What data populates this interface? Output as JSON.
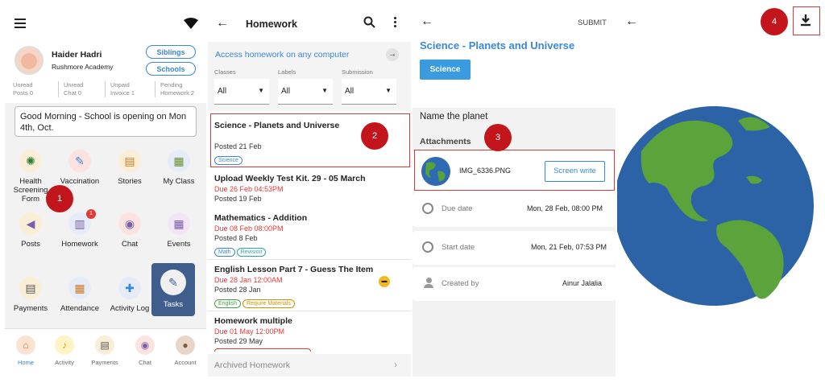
{
  "panel1": {
    "user_name": "Haider Hadri",
    "school": "Rushmore Academy",
    "siblings": "Siblings",
    "schools": "Schools",
    "stats": [
      {
        "l1": "Unread",
        "l2": "Posts 0"
      },
      {
        "l1": "Unread",
        "l2": "Chat 0"
      },
      {
        "l1": "Unpaid",
        "l2": "Invoice 1"
      },
      {
        "l1": "Pending",
        "l2": "Homework 2"
      }
    ],
    "greeting": "Good Morning - School is opening on Mon 4th, Oct.",
    "tiles": [
      "Health Screening Form",
      "Vaccination",
      "Stories",
      "My Class",
      "Posts",
      "Homework",
      "Chat",
      "Events",
      "Payments",
      "Attendance",
      "Activity Log",
      "Tasks"
    ],
    "homework_badge": "1",
    "bottom_nav": [
      "Home",
      "Activity",
      "Payments",
      "Chat",
      "Account"
    ],
    "marker": "1"
  },
  "panel2": {
    "title": "Homework",
    "access_link": "Access homework on any computer",
    "filter_labels": [
      "Classes",
      "Labels",
      "Submission"
    ],
    "filter_values": [
      "All",
      "All",
      "All"
    ],
    "items": [
      {
        "title": "Science - Planets and Universe",
        "due": "",
        "posted": "Posted 21 Feb",
        "tags": [
          "Science"
        ]
      },
      {
        "title": "Upload Weekly Test Kit. 29 - 05 March",
        "due": "Due 26 Feb 04:53PM",
        "posted": "Posted 19 Feb",
        "tags": []
      },
      {
        "title": "Mathematics - Addition",
        "due": "Due 08 Feb 08:00PM",
        "posted": "Posted 8 Feb",
        "tags": [
          "Math",
          "Revision"
        ]
      },
      {
        "title": "English Lesson Part 7 - Guess The Item",
        "due": "Due 28 Jan 12:00AM",
        "posted": "Posted 28 Jan",
        "tags": [
          "English",
          "Require Materials"
        ]
      },
      {
        "title": "Homework multiple",
        "due": "Due 01 May 12:00PM",
        "posted": "Posted 29 May",
        "tags": []
      }
    ],
    "archived": "Archived Homework",
    "marker": "2"
  },
  "panel3": {
    "submit": "SUBMIT",
    "title": "Science - Planets and Universe",
    "subject_button": "Science",
    "description": "Name the planet",
    "attachments_label": "Attachments",
    "file_name": "IMG_6336.PNG",
    "screen_write": "Screen write",
    "due_label": "Due date",
    "due_value": "Mon, 28 Feb, 08:00 PM",
    "start_label": "Start date",
    "start_value": "Mon, 21 Feb, 07:53 PM",
    "created_label": "Created by",
    "created_value": "Ainur Jalalia",
    "marker": "3"
  },
  "panel4": {
    "marker": "4"
  },
  "colors": {
    "accent": "#3a87d8",
    "marker": "#c3161c",
    "due": "#e53935",
    "tasks_bg": "#3f5e8c"
  }
}
